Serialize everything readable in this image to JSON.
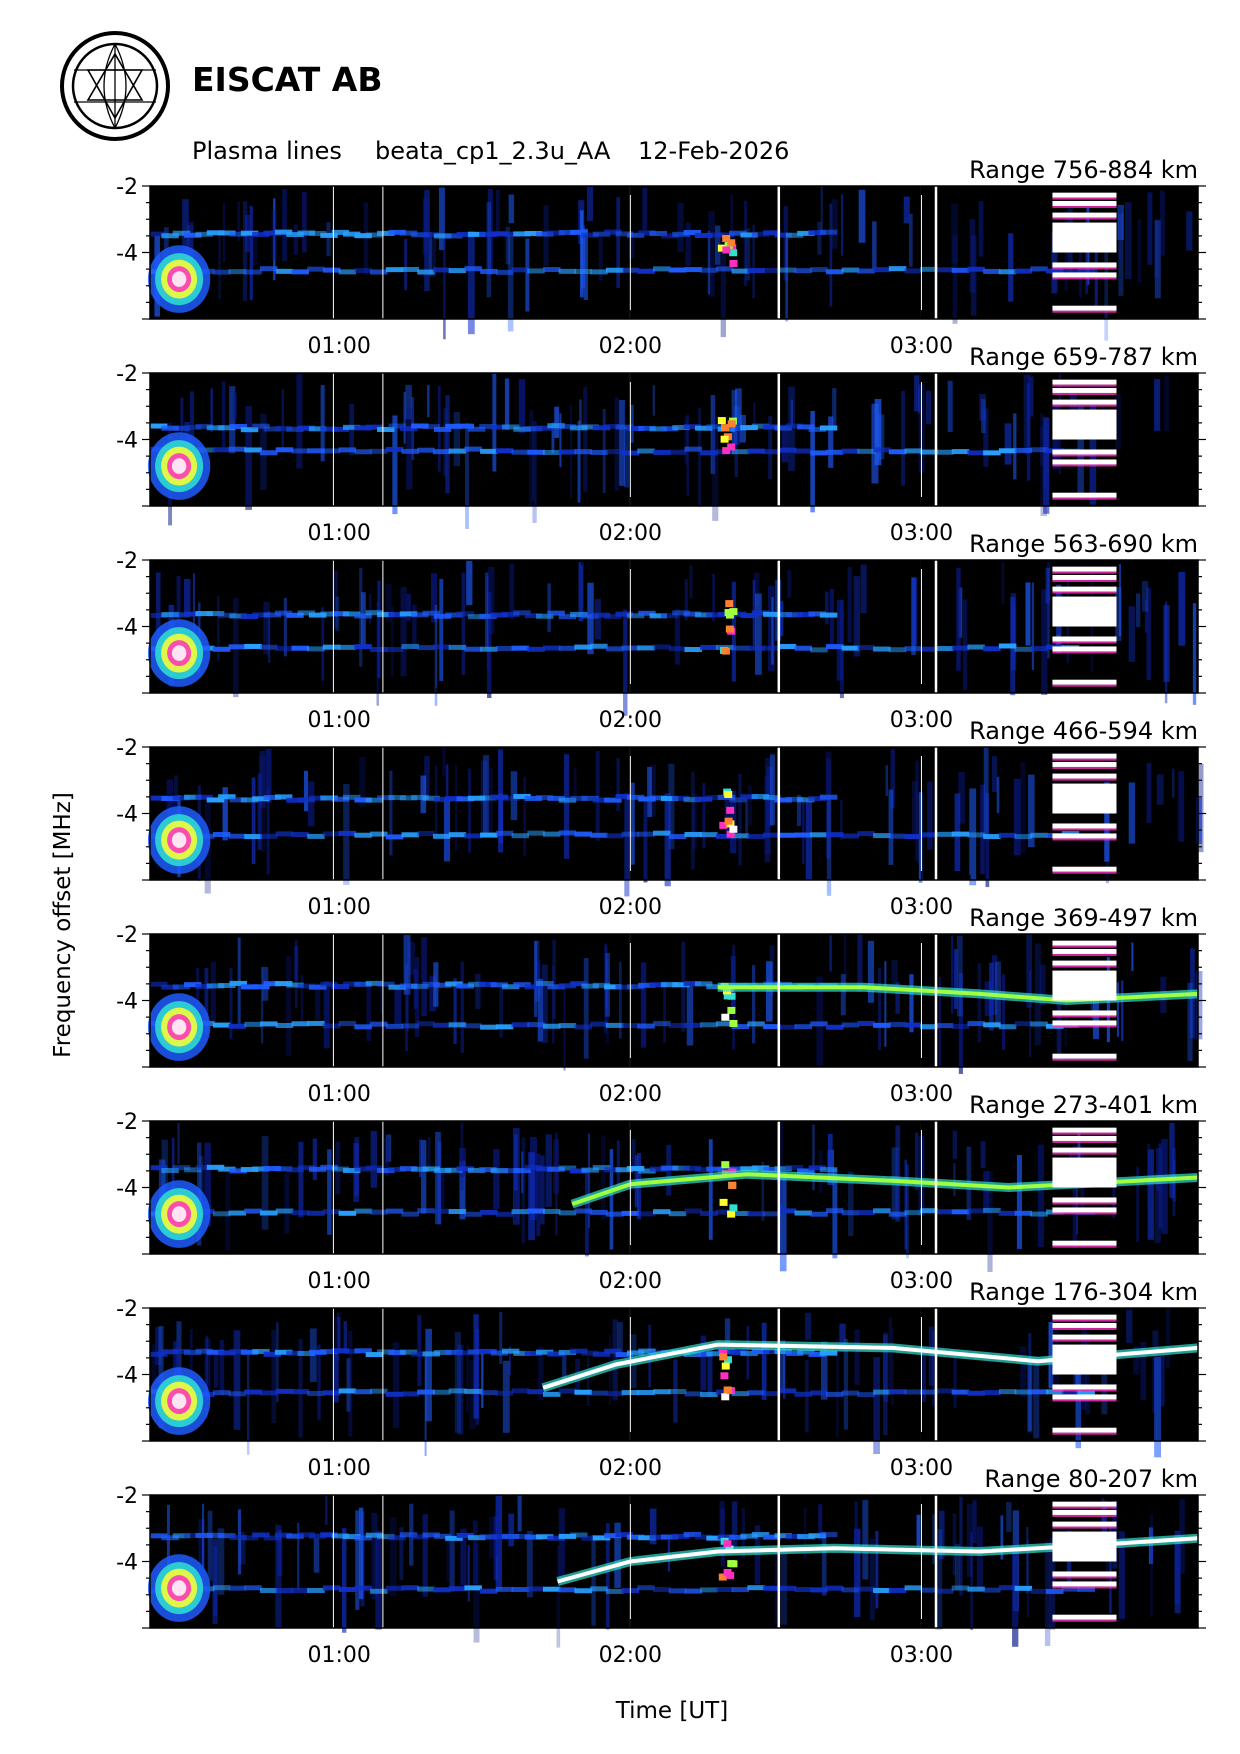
{
  "header": {
    "organization": "EISCAT AB",
    "plot_type": "Plasma lines",
    "experiment": "beata_cp1_2.3u_AA",
    "date": "12-Feb-2026"
  },
  "chart_data": {
    "type": "heatmap",
    "ylabel": "Frequency offset [MHz]",
    "xlabel": "Time [UT]",
    "x_range_hours": [
      0.35,
      3.95
    ],
    "x_ticks": [
      "01:00",
      "02:00",
      "03:00"
    ],
    "x_tick_values": [
      1,
      2,
      3
    ],
    "y_range": [
      -2,
      -6
    ],
    "y_ticks": [
      "-2",
      "-4"
    ],
    "y_tick_values": [
      -2,
      -4
    ],
    "vertical_gap_lines_hours": [
      0.98,
      1.15,
      2.0,
      2.51,
      3.0,
      3.05
    ],
    "interference_block_hours": [
      3.45,
      3.67
    ],
    "panels": [
      {
        "range": "Range 756-884 km",
        "label_box": "right",
        "upper_f": -3.4,
        "lower_f": -4.5,
        "trace": null
      },
      {
        "range": "Range 659-787 km",
        "label_box": "right",
        "upper_f": -3.6,
        "lower_f": -4.3,
        "trace": null
      },
      {
        "range": "Range 563-690 km",
        "label_box": "right",
        "upper_f": -3.6,
        "lower_f": -4.6,
        "trace": null
      },
      {
        "range": "Range 466-594 km",
        "label_box": "right",
        "upper_f": -3.5,
        "lower_f": -4.6,
        "trace": null
      },
      {
        "range": "Range 369-497 km",
        "label_box": "right",
        "upper_f": -3.5,
        "lower_f": -4.7,
        "trace": [
          [
            2.3,
            -3.6
          ],
          [
            2.8,
            -3.6
          ],
          [
            3.2,
            -3.8
          ],
          [
            3.5,
            -4.0
          ],
          [
            3.95,
            -3.8
          ]
        ]
      },
      {
        "range": "Range 273-401 km",
        "label_box": "right",
        "upper_f": -3.4,
        "lower_f": -4.7,
        "trace": [
          [
            1.8,
            -4.5
          ],
          [
            2.0,
            -3.9
          ],
          [
            2.4,
            -3.6
          ],
          [
            2.9,
            -3.8
          ],
          [
            3.3,
            -4.0
          ],
          [
            3.95,
            -3.7
          ]
        ]
      },
      {
        "range": "Range 176-304 km",
        "label_box": "right",
        "upper_f": -3.3,
        "lower_f": -4.5,
        "trace": [
          [
            1.7,
            -4.4
          ],
          [
            1.95,
            -3.7
          ],
          [
            2.3,
            -3.1
          ],
          [
            2.9,
            -3.2
          ],
          [
            3.4,
            -3.6
          ],
          [
            3.95,
            -3.2
          ]
        ]
      },
      {
        "range": "Range 80-207 km",
        "label_box": "right",
        "upper_f": -3.2,
        "lower_f": -4.8,
        "trace": [
          [
            1.75,
            -4.6
          ],
          [
            2.0,
            -4.0
          ],
          [
            2.3,
            -3.7
          ],
          [
            2.7,
            -3.6
          ],
          [
            3.2,
            -3.7
          ],
          [
            3.6,
            -3.5
          ],
          [
            3.95,
            -3.3
          ]
        ]
      }
    ]
  }
}
